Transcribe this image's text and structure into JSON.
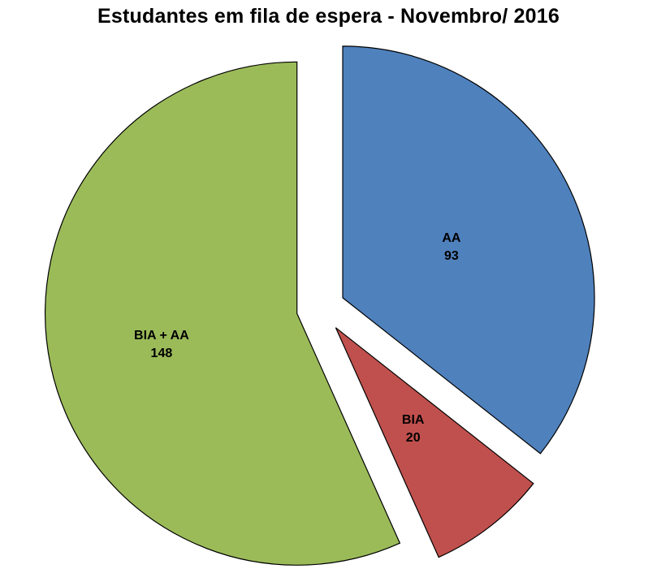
{
  "title": "Estudantes em fila de espera -  Novembro/ 2016",
  "chart_data": {
    "type": "pie",
    "title": "Estudantes em fila de espera -  Novembro/ 2016",
    "total": 261,
    "start_angle_deg": 0,
    "direction": "clockwise",
    "exploded": true,
    "legend": "none",
    "labels_inside": true,
    "background": "#ffffff",
    "slices": [
      {
        "label": "AA",
        "value": 93,
        "color": "#4F81BD",
        "label_radius_factor": 0.48
      },
      {
        "label": "BIA",
        "value": 20,
        "color": "#C0504D",
        "label_radius_factor": 0.5
      },
      {
        "label": "BIA + AA",
        "value": 148,
        "color": "#9BBB59",
        "label_radius_factor": 0.55
      }
    ]
  }
}
